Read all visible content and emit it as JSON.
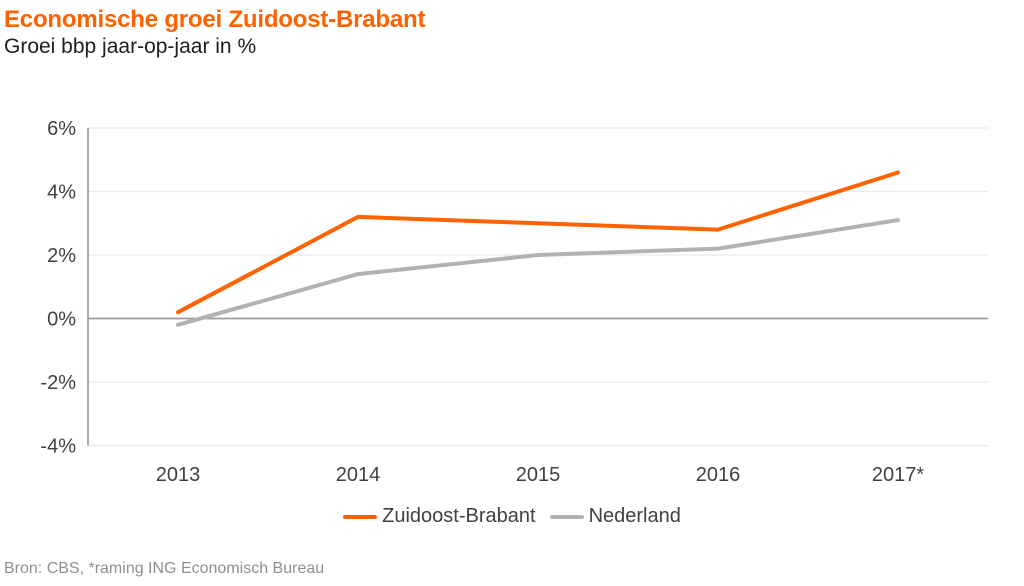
{
  "header": {
    "title": "Economische groei Zuidoost-Brabant",
    "subtitle": "Groei bbp jaar-op-jaar in %"
  },
  "footer": {
    "source": "Bron: CBS, *raming ING Economisch Bureau"
  },
  "colors": {
    "accent_orange": "#ff6200",
    "series_gray": "#b2b2b2",
    "axis_gray": "#9b9b9b",
    "gridline_gray": "#e9e9e9",
    "label_gray": "#414141",
    "source_gray": "#8f8f8f"
  },
  "chart_data": {
    "type": "line",
    "title": "Economische groei Zuidoost-Brabant",
    "subtitle": "Groei bbp jaar-op-jaar in %",
    "categories": [
      "2013",
      "2014",
      "2015",
      "2016",
      "2017*"
    ],
    "series": [
      {
        "name": "Zuidoost-Brabant",
        "color": "#ff6200",
        "values": [
          0.2,
          3.2,
          3.0,
          2.8,
          4.6
        ]
      },
      {
        "name": "Nederland",
        "color": "#b2b2b2",
        "values": [
          -0.2,
          1.4,
          2.0,
          2.2,
          3.1
        ]
      }
    ],
    "xlabel": "",
    "ylabel": "",
    "ylim": [
      -4,
      6
    ],
    "y_ticks": [
      {
        "value": 6,
        "label": "6%"
      },
      {
        "value": 4,
        "label": "4%"
      },
      {
        "value": 2,
        "label": "2%"
      },
      {
        "value": 0,
        "label": "0%"
      },
      {
        "value": -2,
        "label": "-2%"
      },
      {
        "value": -4,
        "label": "-4%"
      }
    ],
    "grid": true,
    "zero_line": true,
    "legend_position": "bottom"
  }
}
